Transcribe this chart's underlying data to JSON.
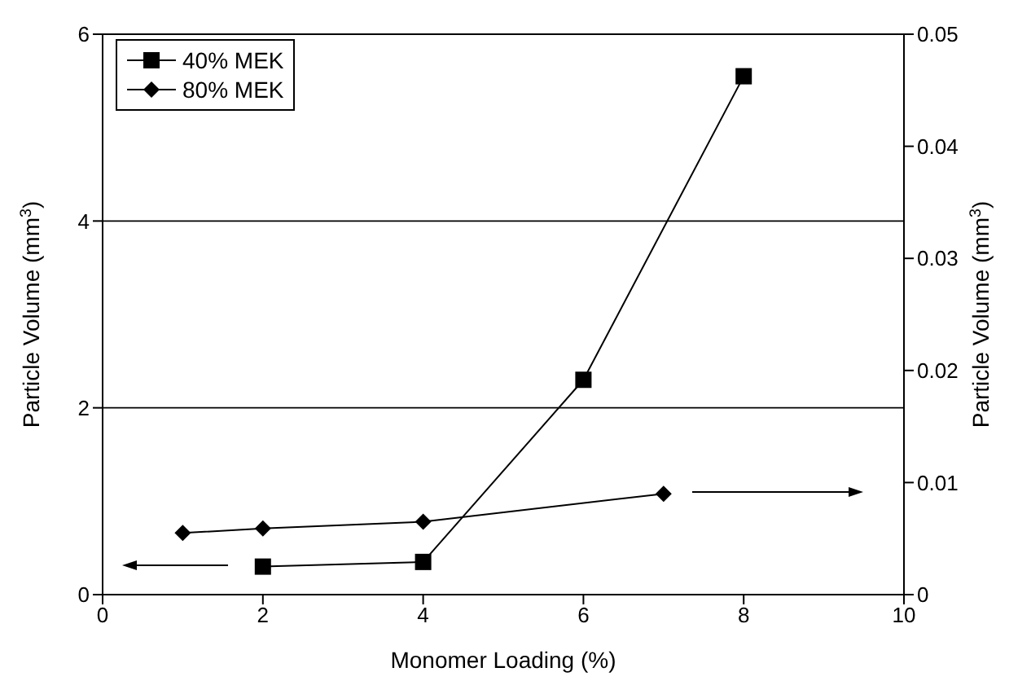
{
  "chart_data": {
    "type": "line",
    "xlabel": "Monomer Loading (%)",
    "ylabel": "Particle Volume (mm$^{3}$)",
    "y2label": "Particle Volume (mm$^{3}$)",
    "xlim": [
      0,
      10
    ],
    "xticks": [
      0,
      2,
      4,
      6,
      8,
      10
    ],
    "ylim": [
      0,
      6
    ],
    "yticks": [
      0,
      2,
      4,
      6
    ],
    "y2lim": [
      0,
      0.05
    ],
    "y2ticks": [
      0,
      0.01,
      0.02,
      0.03,
      0.04,
      0.05
    ],
    "grid": "y",
    "legend": "top left",
    "series": [
      {
        "name": "40% MEK",
        "color": "#000000",
        "marker": "square",
        "x": [
          2,
          4,
          6,
          8
        ],
        "values": [
          0.3,
          0.35,
          2.3,
          5.55
        ]
      },
      {
        "name": "80% MEK",
        "color": "#000000",
        "marker": "diamond",
        "axis": "y2",
        "x": [
          1,
          2,
          4,
          7
        ],
        "values": [
          0.0055,
          0.0059,
          0.0065,
          0.009
        ]
      }
    ]
  }
}
